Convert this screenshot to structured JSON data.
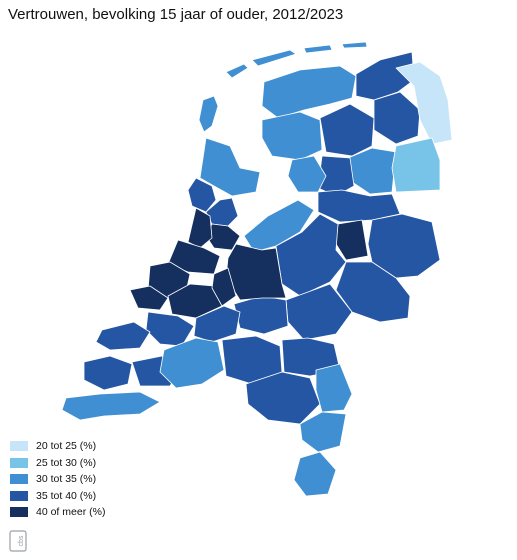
{
  "title": "Vertrouwen, bevolking 15 jaar of ouder, 2012/2023",
  "legend": [
    {
      "label": "20 tot 25 (%)",
      "color": "#c6e5f8"
    },
    {
      "label": "25 tot 30 (%)",
      "color": "#78c4e8"
    },
    {
      "label": "30 tot 35 (%)",
      "color": "#3f8fd2"
    },
    {
      "label": "35 tot 40 (%)",
      "color": "#2456a4"
    },
    {
      "label": "40 of meer (%)",
      "color": "#152f5e"
    }
  ],
  "logo_text": "cbs"
}
